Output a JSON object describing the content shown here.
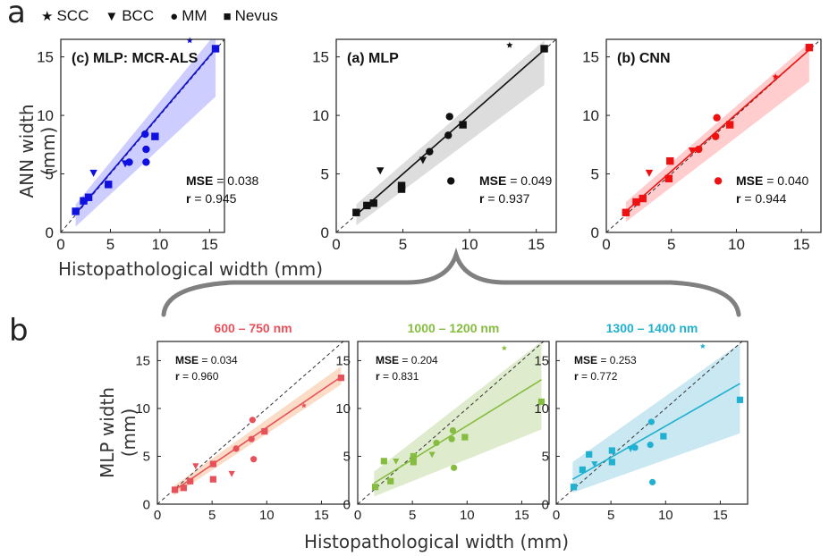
{
  "panel_labels": {
    "top": "a",
    "bottom": "b"
  },
  "legend": [
    {
      "symbol": "★",
      "label": "SCC",
      "icon": "star-icon"
    },
    {
      "symbol": "▼",
      "label": "BCC",
      "icon": "triangle-down-icon"
    },
    {
      "symbol": "●",
      "label": "MM",
      "icon": "circle-icon"
    },
    {
      "symbol": "■",
      "label": "Nevus",
      "icon": "square-icon"
    }
  ],
  "top_row": {
    "ylabel": "ANN width (mm)",
    "xlabel": "Histopathological width (mm)"
  },
  "bottom_row": {
    "ylabel": "MLP width (mm)",
    "xlabel": "Histopathological width (mm)"
  },
  "chart_data": [
    {
      "type": "scatter",
      "title": "(c)  MLP: MCR-ALS",
      "color": "#1010e0",
      "band_color": "#c8c8ff",
      "xlim": [
        0,
        16.5
      ],
      "ylim": [
        0,
        16.5
      ],
      "xticks": [
        0,
        5,
        10,
        15
      ],
      "yticks": [
        0,
        5,
        10,
        15
      ],
      "mse_label": "MSE",
      "mse_value": "= 0.038",
      "r_label": "r",
      "r_value": "= 0.945",
      "fit": {
        "x": [
          1.5,
          15.6
        ],
        "y": [
          1.6,
          15.7
        ]
      },
      "band": {
        "x": [
          1.5,
          15.6
        ],
        "lower": [
          0.5,
          11.6
        ],
        "upper": [
          2.4,
          17.0
        ]
      },
      "points": [
        {
          "x": 1.5,
          "y": 1.8,
          "marker": "square"
        },
        {
          "x": 2.3,
          "y": 2.7,
          "marker": "square"
        },
        {
          "x": 2.8,
          "y": 3.0,
          "marker": "square"
        },
        {
          "x": 4.8,
          "y": 4.1,
          "marker": "square"
        },
        {
          "x": 9.5,
          "y": 8.2,
          "marker": "square"
        },
        {
          "x": 15.6,
          "y": 15.7,
          "marker": "square"
        },
        {
          "x": 3.3,
          "y": 5.1,
          "marker": "triangle"
        },
        {
          "x": 6.5,
          "y": 5.9,
          "marker": "triangle"
        },
        {
          "x": 6.9,
          "y": 6.0,
          "marker": "circle"
        },
        {
          "x": 8.5,
          "y": 8.4,
          "marker": "circle"
        },
        {
          "x": 8.6,
          "y": 7.1,
          "marker": "circle"
        },
        {
          "x": 8.6,
          "y": 6.0,
          "marker": "circle"
        },
        {
          "x": 13.0,
          "y": 16.4,
          "marker": "star"
        }
      ]
    },
    {
      "type": "scatter",
      "title": "(a)  MLP",
      "color": "#111111",
      "band_color": "#d9d9d9",
      "xlim": [
        0,
        16.5
      ],
      "ylim": [
        0,
        16.5
      ],
      "xticks": [
        0,
        5,
        10,
        15
      ],
      "yticks": [
        0,
        5,
        10,
        15
      ],
      "mse_label": "MSE",
      "mse_value": "= 0.049",
      "r_label": "r",
      "r_value": "= 0.937",
      "fit": {
        "x": [
          1.5,
          15.6
        ],
        "y": [
          1.5,
          15.6
        ]
      },
      "band": {
        "x": [
          1.5,
          15.6
        ],
        "lower": [
          0.6,
          12.6
        ],
        "upper": [
          2.4,
          16.4
        ]
      },
      "points": [
        {
          "x": 1.5,
          "y": 1.7,
          "marker": "square"
        },
        {
          "x": 2.3,
          "y": 2.3,
          "marker": "square"
        },
        {
          "x": 2.8,
          "y": 2.5,
          "marker": "square"
        },
        {
          "x": 4.9,
          "y": 4.0,
          "marker": "square"
        },
        {
          "x": 4.9,
          "y": 3.7,
          "marker": "square"
        },
        {
          "x": 9.5,
          "y": 9.2,
          "marker": "square"
        },
        {
          "x": 15.6,
          "y": 15.7,
          "marker": "square"
        },
        {
          "x": 3.3,
          "y": 5.3,
          "marker": "triangle"
        },
        {
          "x": 6.5,
          "y": 6.2,
          "marker": "triangle"
        },
        {
          "x": 7.0,
          "y": 6.9,
          "marker": "circle"
        },
        {
          "x": 8.5,
          "y": 9.9,
          "marker": "circle"
        },
        {
          "x": 8.4,
          "y": 8.3,
          "marker": "circle"
        },
        {
          "x": 8.6,
          "y": 4.4,
          "marker": "circle"
        },
        {
          "x": 13.0,
          "y": 16.0,
          "marker": "star"
        }
      ]
    },
    {
      "type": "scatter",
      "title": "(b)  CNN",
      "color": "#ee1111",
      "band_color": "#ffc8c8",
      "xlim": [
        0,
        16.5
      ],
      "ylim": [
        0,
        16.5
      ],
      "xticks": [
        0,
        5,
        10,
        15
      ],
      "yticks": [
        0,
        5,
        10,
        15
      ],
      "mse_label": "MSE",
      "mse_value": "= 0.040",
      "r_label": "r",
      "r_value": "= 0.944",
      "fit": {
        "x": [
          1.5,
          15.6
        ],
        "y": [
          1.8,
          15.6
        ]
      },
      "band": {
        "x": [
          1.5,
          15.6
        ],
        "lower": [
          0.9,
          12.9
        ],
        "upper": [
          2.6,
          16.2
        ]
      },
      "points": [
        {
          "x": 1.5,
          "y": 1.7,
          "marker": "square"
        },
        {
          "x": 2.3,
          "y": 2.6,
          "marker": "square"
        },
        {
          "x": 2.8,
          "y": 2.9,
          "marker": "square"
        },
        {
          "x": 4.9,
          "y": 6.1,
          "marker": "square"
        },
        {
          "x": 4.8,
          "y": 4.6,
          "marker": "square"
        },
        {
          "x": 9.5,
          "y": 9.2,
          "marker": "square"
        },
        {
          "x": 15.6,
          "y": 15.8,
          "marker": "square"
        },
        {
          "x": 3.3,
          "y": 5.1,
          "marker": "triangle"
        },
        {
          "x": 6.6,
          "y": 7.0,
          "marker": "triangle"
        },
        {
          "x": 7.1,
          "y": 7.1,
          "marker": "circle"
        },
        {
          "x": 8.5,
          "y": 9.8,
          "marker": "circle"
        },
        {
          "x": 8.4,
          "y": 8.2,
          "marker": "circle"
        },
        {
          "x": 8.6,
          "y": 4.4,
          "marker": "circle"
        },
        {
          "x": 13.0,
          "y": 13.3,
          "marker": "star"
        }
      ]
    },
    {
      "type": "scatter",
      "title": "600 – 750 nm",
      "color": "#e8505a",
      "band_color": "#fbd8c0",
      "xlim": [
        0,
        17.5
      ],
      "ylim": [
        0,
        17
      ],
      "xticks": [
        0,
        5,
        10,
        15
      ],
      "yticks": [
        0,
        5,
        10,
        15
      ],
      "mse_label": "MSE",
      "mse_value": "= 0.034",
      "r_label": "r",
      "r_value": "= 0.960",
      "fit": {
        "x": [
          1.5,
          16.8
        ],
        "y": [
          1.4,
          13.3
        ]
      },
      "band": {
        "x": [
          1.5,
          16.8
        ],
        "lower": [
          0.9,
          12.5
        ],
        "upper": [
          1.9,
          14.4
        ]
      },
      "points": [
        {
          "x": 1.6,
          "y": 1.5,
          "marker": "square"
        },
        {
          "x": 2.4,
          "y": 1.7,
          "marker": "square"
        },
        {
          "x": 3.0,
          "y": 2.4,
          "marker": "square"
        },
        {
          "x": 5.1,
          "y": 4.2,
          "marker": "square"
        },
        {
          "x": 5.1,
          "y": 2.6,
          "marker": "square"
        },
        {
          "x": 9.8,
          "y": 7.6,
          "marker": "square"
        },
        {
          "x": 16.8,
          "y": 13.2,
          "marker": "square"
        },
        {
          "x": 3.5,
          "y": 4.0,
          "marker": "triangle"
        },
        {
          "x": 6.8,
          "y": 3.2,
          "marker": "triangle"
        },
        {
          "x": 7.2,
          "y": 5.8,
          "marker": "circle"
        },
        {
          "x": 8.7,
          "y": 8.8,
          "marker": "circle"
        },
        {
          "x": 8.6,
          "y": 6.8,
          "marker": "circle"
        },
        {
          "x": 8.8,
          "y": 4.7,
          "marker": "circle"
        },
        {
          "x": 13.4,
          "y": 10.3,
          "marker": "star"
        }
      ]
    },
    {
      "type": "scatter",
      "title": "1000 – 1200 nm",
      "color": "#86bd40",
      "band_color": "#dbe9c8",
      "xlim": [
        0,
        17.5
      ],
      "ylim": [
        0,
        17
      ],
      "xticks": [
        0,
        5,
        10,
        15
      ],
      "yticks": [
        0,
        5,
        10,
        15
      ],
      "mse_label": "MSE",
      "mse_value": "= 0.204",
      "r_label": "r",
      "r_value": "= 0.831",
      "fit": {
        "x": [
          1.5,
          16.8
        ],
        "y": [
          2.2,
          13.0
        ]
      },
      "band": {
        "x": [
          1.5,
          16.8
        ],
        "lower": [
          0.8,
          7.8
        ],
        "upper": [
          3.4,
          17.0
        ]
      },
      "points": [
        {
          "x": 1.6,
          "y": 1.8,
          "marker": "square"
        },
        {
          "x": 2.4,
          "y": 4.5,
          "marker": "square"
        },
        {
          "x": 3.0,
          "y": 2.4,
          "marker": "square"
        },
        {
          "x": 5.1,
          "y": 4.4,
          "marker": "square"
        },
        {
          "x": 5.1,
          "y": 5.0,
          "marker": "square"
        },
        {
          "x": 9.8,
          "y": 7.0,
          "marker": "square"
        },
        {
          "x": 16.8,
          "y": 10.7,
          "marker": "square"
        },
        {
          "x": 3.5,
          "y": 4.5,
          "marker": "triangle"
        },
        {
          "x": 6.8,
          "y": 5.2,
          "marker": "triangle"
        },
        {
          "x": 7.2,
          "y": 6.4,
          "marker": "circle"
        },
        {
          "x": 8.7,
          "y": 7.7,
          "marker": "circle"
        },
        {
          "x": 8.6,
          "y": 6.8,
          "marker": "circle"
        },
        {
          "x": 8.8,
          "y": 3.8,
          "marker": "circle"
        },
        {
          "x": 13.4,
          "y": 16.3,
          "marker": "star"
        }
      ]
    },
    {
      "type": "scatter",
      "title": "1300 – 1400 nm",
      "color": "#20b0d0",
      "band_color": "#c3e6f0",
      "xlim": [
        0,
        17.5
      ],
      "ylim": [
        0,
        17
      ],
      "xticks": [
        0,
        5,
        10,
        15
      ],
      "yticks": [
        0,
        5,
        10,
        15
      ],
      "mse_label": "MSE",
      "mse_value": "= 0.253",
      "r_label": "r",
      "r_value": "= 0.772",
      "fit": {
        "x": [
          1.5,
          16.8
        ],
        "y": [
          2.6,
          12.6
        ]
      },
      "band": {
        "x": [
          1.5,
          16.8
        ],
        "lower": [
          1.2,
          7.4
        ],
        "upper": [
          4.4,
          16.8
        ]
      },
      "points": [
        {
          "x": 1.6,
          "y": 1.8,
          "marker": "square"
        },
        {
          "x": 2.4,
          "y": 3.6,
          "marker": "square"
        },
        {
          "x": 3.0,
          "y": 5.2,
          "marker": "square"
        },
        {
          "x": 5.1,
          "y": 4.4,
          "marker": "square"
        },
        {
          "x": 5.1,
          "y": 5.6,
          "marker": "square"
        },
        {
          "x": 9.8,
          "y": 7.1,
          "marker": "square"
        },
        {
          "x": 16.8,
          "y": 10.9,
          "marker": "square"
        },
        {
          "x": 3.5,
          "y": 4.2,
          "marker": "triangle"
        },
        {
          "x": 6.8,
          "y": 5.8,
          "marker": "triangle"
        },
        {
          "x": 7.2,
          "y": 5.9,
          "marker": "circle"
        },
        {
          "x": 8.7,
          "y": 8.6,
          "marker": "circle"
        },
        {
          "x": 8.6,
          "y": 6.2,
          "marker": "circle"
        },
        {
          "x": 8.8,
          "y": 2.3,
          "marker": "circle"
        },
        {
          "x": 13.4,
          "y": 16.5,
          "marker": "star"
        }
      ]
    }
  ]
}
